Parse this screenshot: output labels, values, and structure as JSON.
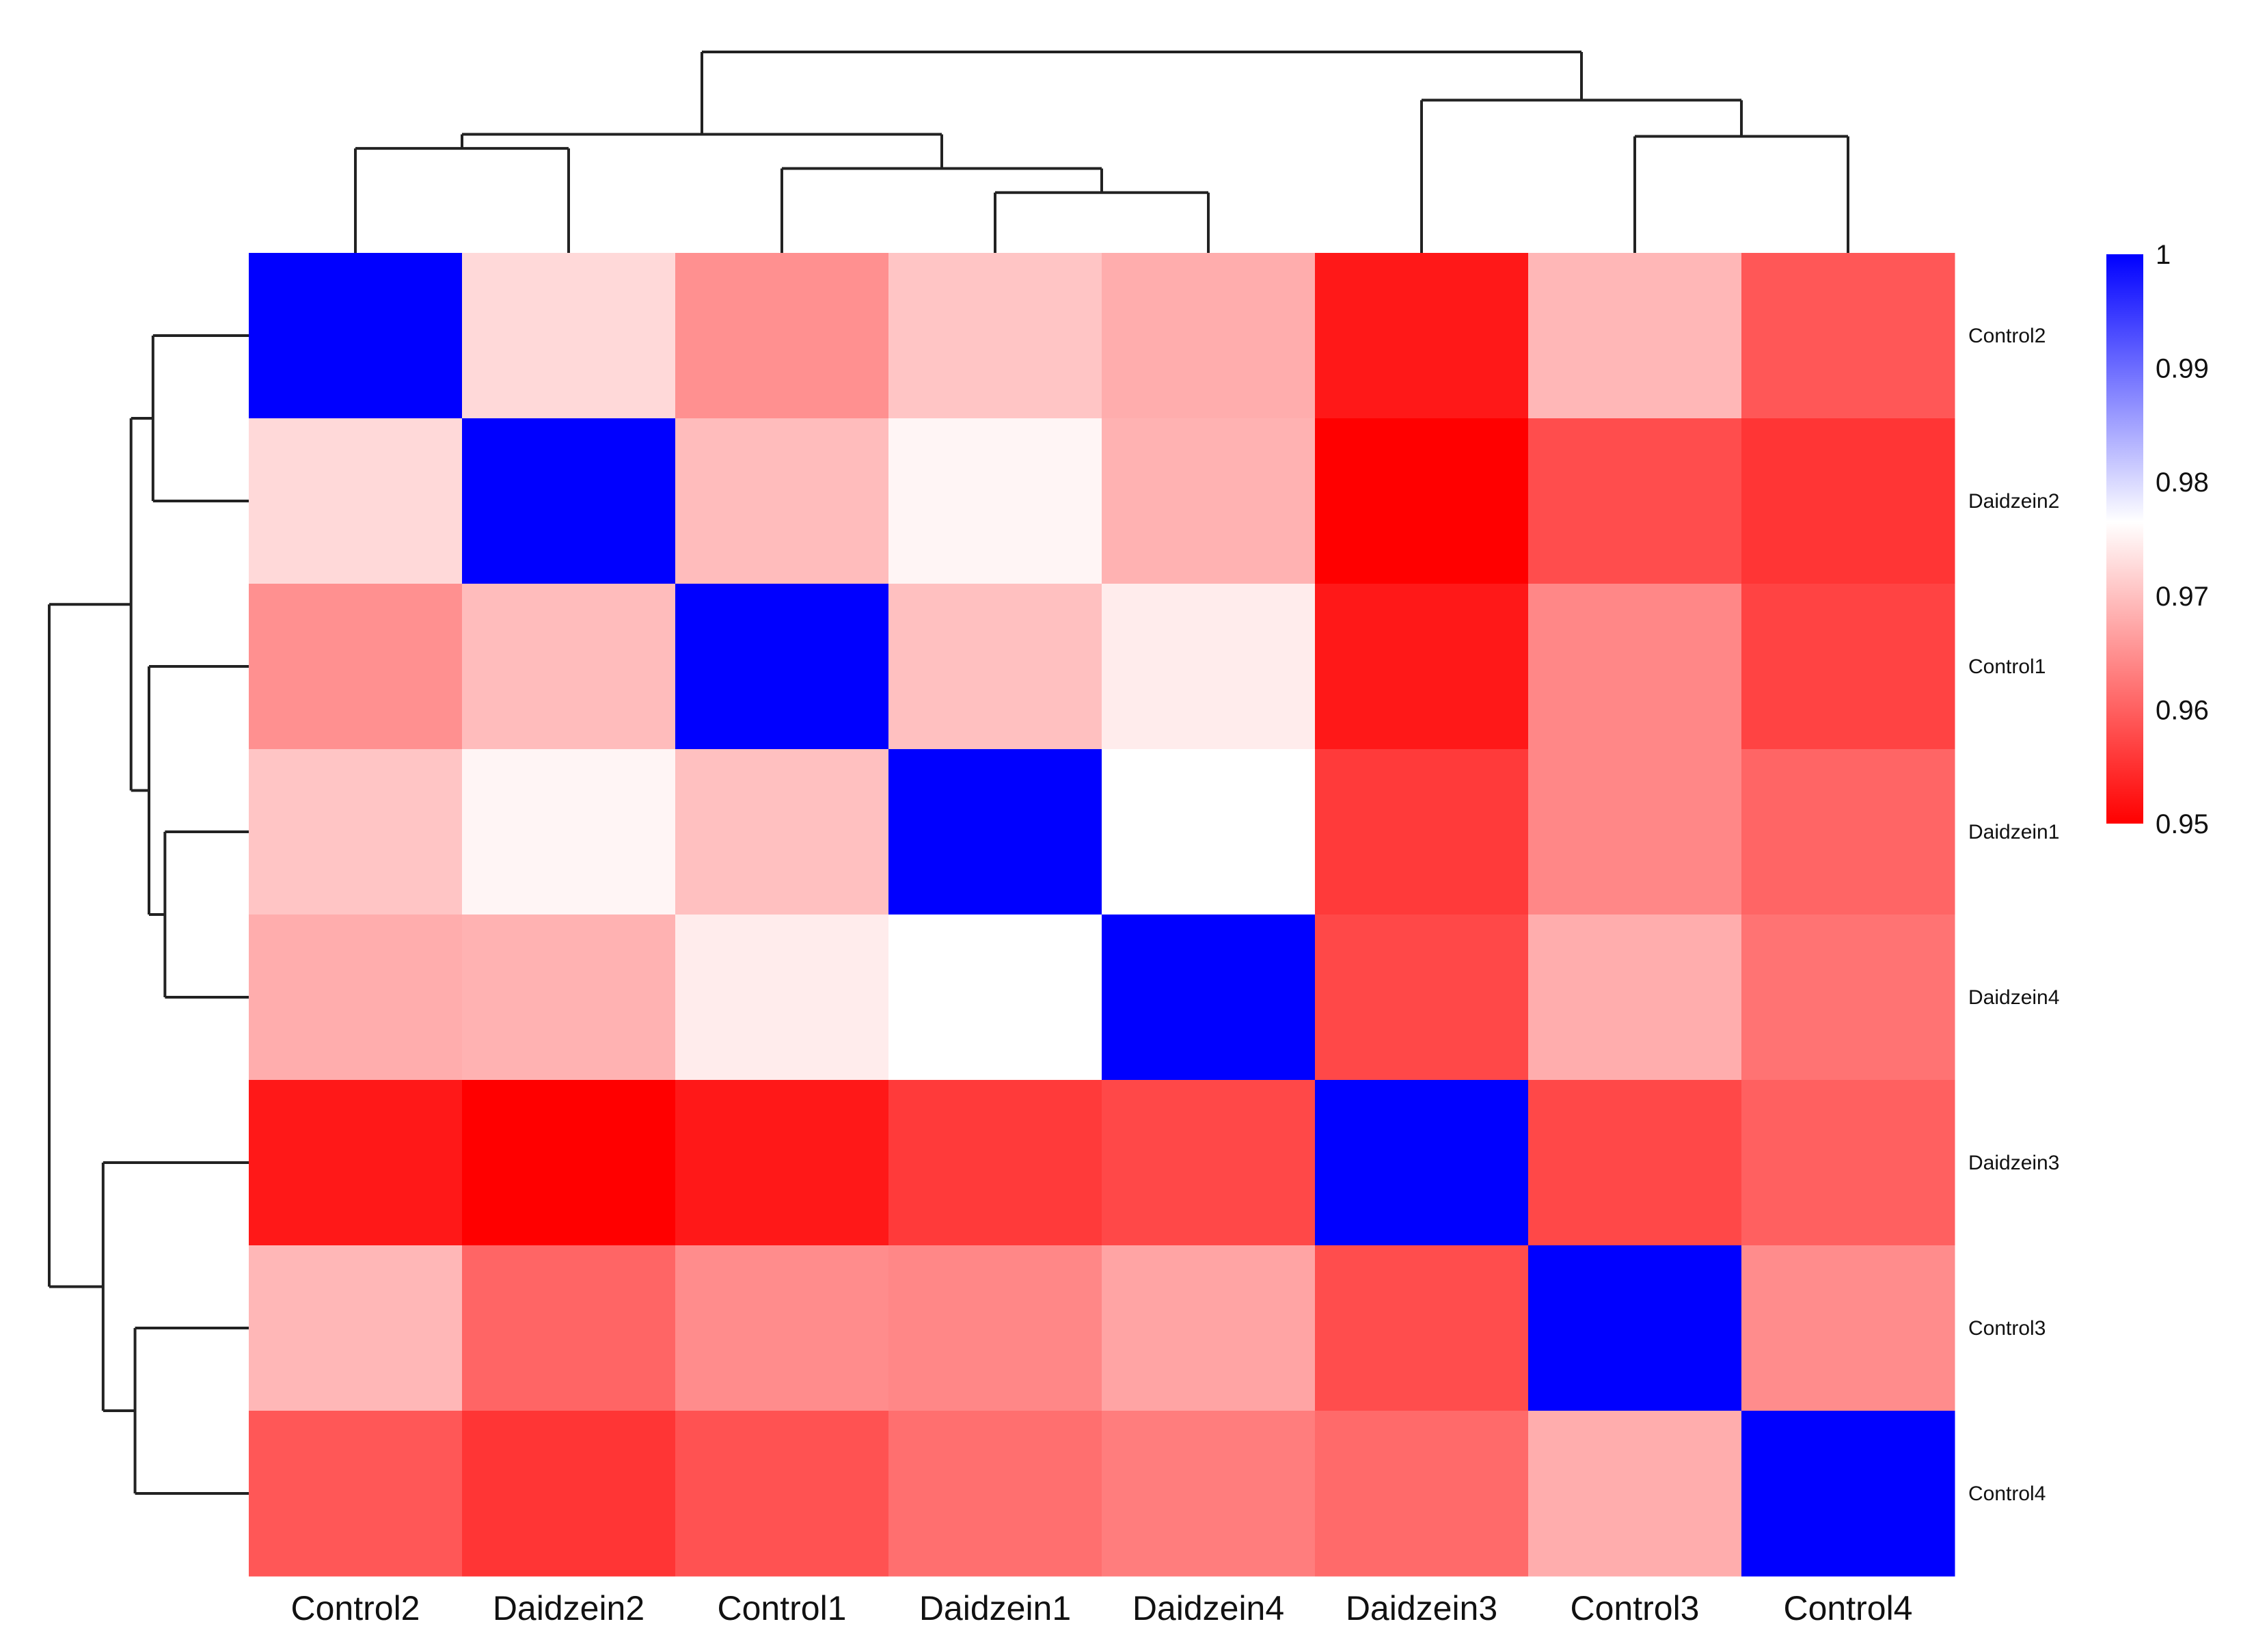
{
  "chart_data": {
    "type": "heatmap",
    "title": "",
    "columns": [
      "Control2",
      "Daidzein2",
      "Control1",
      "Daidzein1",
      "Daidzein4",
      "Daidzein3",
      "Control3",
      "Control4"
    ],
    "rows": [
      "Control2",
      "Daidzein2",
      "Control1",
      "Daidzein1",
      "Daidzein4",
      "Daidzein3",
      "Control3",
      "Control4"
    ],
    "values": [
      [
        1.0,
        0.9725,
        0.965,
        0.9705,
        0.968,
        0.9525,
        0.969,
        0.959
      ],
      [
        0.9725,
        1.0,
        0.9695,
        0.9755,
        0.9685,
        0.95,
        0.958,
        0.9555
      ],
      [
        0.965,
        0.9695,
        1.0,
        0.97,
        0.9745,
        0.9525,
        0.964,
        0.957
      ],
      [
        0.9705,
        0.9755,
        0.97,
        1.0,
        0.9765,
        0.956,
        0.964,
        0.9605
      ],
      [
        0.968,
        0.9685,
        0.9745,
        0.9765,
        1.0,
        0.9575,
        0.968,
        0.962
      ],
      [
        0.9525,
        0.95,
        0.9525,
        0.956,
        0.9575,
        1.0,
        0.9575,
        0.96
      ],
      [
        0.969,
        0.9605,
        0.9645,
        0.964,
        0.967,
        0.958,
        1.0,
        0.9645
      ],
      [
        0.959,
        0.9555,
        0.9585,
        0.9615,
        0.963,
        0.961,
        0.968,
        1.0
      ]
    ],
    "colorscale": {
      "min": 0.95,
      "mid": 0.9765,
      "max": 1.0,
      "low_color": "#ff0000",
      "mid_color": "#ffffff",
      "high_color": "#0000ff",
      "ticks": [
        "1",
        "0.99",
        "0.98",
        "0.97",
        "0.96",
        "0.95"
      ],
      "tick_values": [
        1.0,
        0.99,
        0.98,
        0.97,
        0.96,
        0.95
      ]
    },
    "col_dendrogram": {
      "merges": [
        [
          3,
          4,
          0.3
        ],
        [
          2,
          -1,
          0.42
        ],
        [
          0,
          1,
          0.52
        ],
        [
          -3,
          -2,
          0.59
        ],
        [
          6,
          7,
          0.58
        ],
        [
          5,
          -5,
          0.76
        ],
        [
          -4,
          -6,
          1.0
        ]
      ]
    },
    "row_dendrogram": {
      "merges": [
        [
          0,
          1,
          0.48
        ],
        [
          3,
          4,
          0.42
        ],
        [
          2,
          -2,
          0.5
        ],
        [
          -1,
          -3,
          0.59
        ],
        [
          6,
          7,
          0.57
        ],
        [
          5,
          -5,
          0.73
        ],
        [
          -4,
          -6,
          1.0
        ]
      ]
    }
  }
}
